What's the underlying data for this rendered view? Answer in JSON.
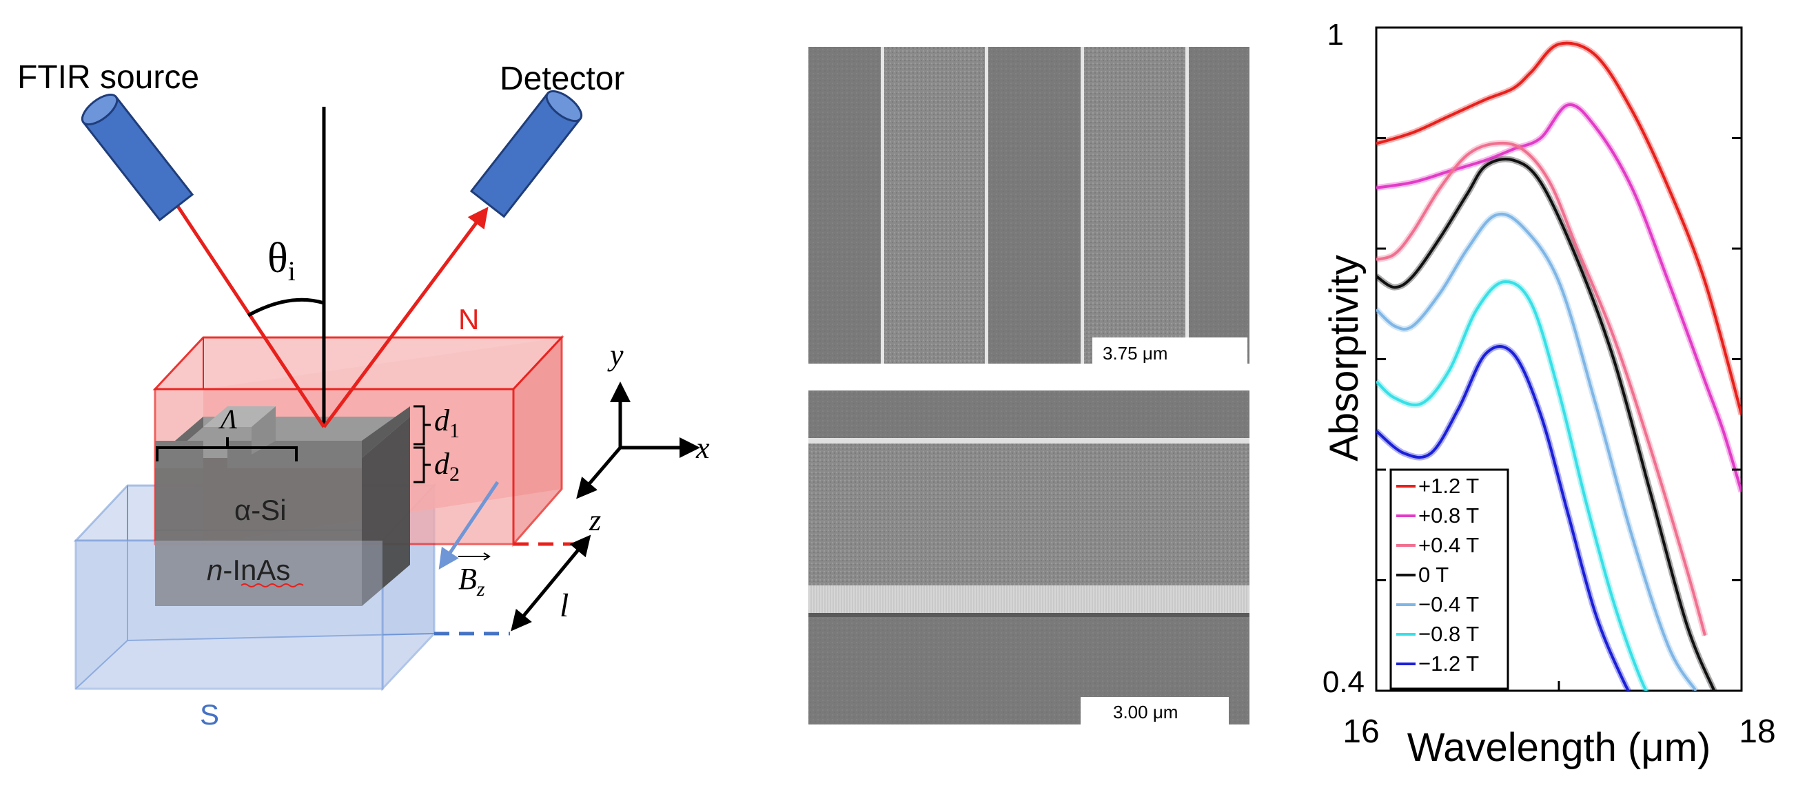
{
  "schematic": {
    "source_label": "FTIR source",
    "detector_label": "Detector",
    "angle_label": "θ",
    "angle_sub": "i",
    "north_label": "N",
    "south_label": "S",
    "period_label": "Λ",
    "d1_label": "d",
    "d1_sub": "1",
    "d2_label": "d",
    "d2_sub": "2",
    "layer_top": "α-Si",
    "layer_bottom_prefix": "n",
    "layer_bottom_suffix": "-InAs",
    "axis_y": "y",
    "axis_x": "x",
    "axis_z": "z",
    "field_label": "B",
    "field_sub": "z",
    "length_label": "l",
    "colors": {
      "beam": "#e8201c",
      "magnet_n": "#f46e6e",
      "magnet_s": "#6f96d6",
      "emitter": "#4472c4"
    }
  },
  "sem": {
    "top_scale": "3.75 μm",
    "bottom_scale": "3.00 μm"
  },
  "chart_data": {
    "type": "line",
    "xlabel": "Wavelength (μm)",
    "ylabel": "Absorptivity",
    "xlim": [
      16,
      18
    ],
    "ylim": [
      0.4,
      1
    ],
    "x_ticks": [
      "16",
      "18"
    ],
    "y_ticks": [
      "0.4",
      "1"
    ],
    "legend_position": "bottom-left",
    "series": [
      {
        "name": "+1.2 T",
        "color": "#e8201c",
        "x": [
          16,
          16.2,
          16.4,
          16.6,
          16.75,
          16.85,
          17.0,
          17.2,
          17.4,
          17.6,
          17.8,
          18
        ],
        "y": [
          0.895,
          0.905,
          0.92,
          0.935,
          0.945,
          0.96,
          0.985,
          0.975,
          0.925,
          0.855,
          0.77,
          0.65
        ]
      },
      {
        "name": "+0.8 T",
        "color": "#e23bc7",
        "x": [
          16,
          16.2,
          16.4,
          16.6,
          16.75,
          16.9,
          17.05,
          17.2,
          17.4,
          17.6,
          17.8,
          17.9,
          18
        ],
        "y": [
          0.855,
          0.86,
          0.87,
          0.88,
          0.89,
          0.9,
          0.93,
          0.91,
          0.855,
          0.77,
          0.68,
          0.635,
          0.58
        ]
      },
      {
        "name": "+0.4 T",
        "color": "#f07090",
        "x": [
          16,
          16.1,
          16.2,
          16.35,
          16.5,
          16.65,
          16.8,
          16.95,
          17.1,
          17.3,
          17.5,
          17.7,
          17.8
        ],
        "y": [
          0.79,
          0.795,
          0.815,
          0.855,
          0.885,
          0.895,
          0.89,
          0.86,
          0.8,
          0.72,
          0.62,
          0.51,
          0.45
        ]
      },
      {
        "name": "0 T",
        "color": "#111111",
        "x": [
          16,
          16.1,
          16.2,
          16.35,
          16.5,
          16.6,
          16.75,
          16.9,
          17.1,
          17.3,
          17.5,
          17.7,
          17.85
        ],
        "y": [
          0.775,
          0.765,
          0.775,
          0.81,
          0.85,
          0.875,
          0.88,
          0.86,
          0.79,
          0.7,
          0.58,
          0.46,
          0.4
        ]
      },
      {
        "name": "−0.4 T",
        "color": "#7fb6e6",
        "x": [
          16,
          16.1,
          16.2,
          16.35,
          16.5,
          16.65,
          16.8,
          17.0,
          17.2,
          17.4,
          17.6,
          17.75
        ],
        "y": [
          0.745,
          0.73,
          0.73,
          0.76,
          0.8,
          0.83,
          0.82,
          0.77,
          0.66,
          0.54,
          0.44,
          0.4
        ]
      },
      {
        "name": "−0.8 T",
        "color": "#37e0e6",
        "x": [
          16,
          16.1,
          16.25,
          16.4,
          16.55,
          16.7,
          16.85,
          17.0,
          17.15,
          17.3,
          17.45,
          17.55
        ],
        "y": [
          0.68,
          0.665,
          0.66,
          0.69,
          0.745,
          0.77,
          0.75,
          0.67,
          0.57,
          0.48,
          0.41,
          0.38
        ]
      },
      {
        "name": "−1.2 T",
        "color": "#1b1fd8",
        "x": [
          16,
          16.15,
          16.3,
          16.45,
          16.6,
          16.75,
          16.9,
          17.05,
          17.2,
          17.35,
          17.45
        ],
        "y": [
          0.635,
          0.615,
          0.615,
          0.655,
          0.705,
          0.705,
          0.65,
          0.56,
          0.47,
          0.41,
          0.38
        ]
      }
    ]
  }
}
